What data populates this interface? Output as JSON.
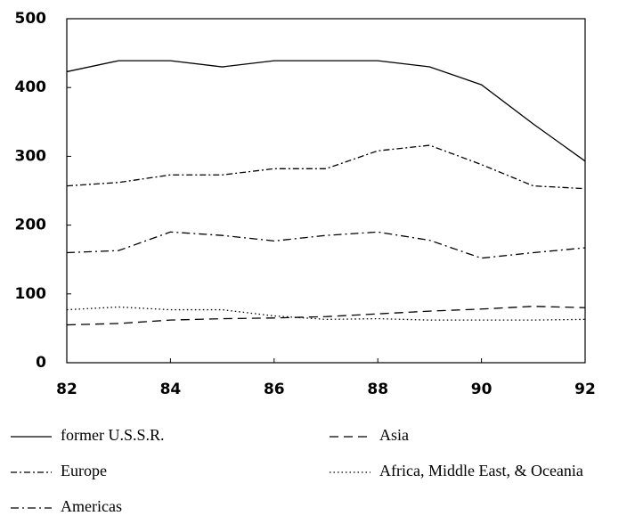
{
  "chart_data": {
    "type": "line",
    "x": [
      82,
      83,
      84,
      85,
      86,
      87,
      88,
      89,
      90,
      91,
      92
    ],
    "xlim": [
      82,
      92
    ],
    "xticks": [
      82,
      84,
      86,
      88,
      90,
      92
    ],
    "ylim": [
      0,
      500
    ],
    "yticks": [
      0,
      100,
      200,
      300,
      400,
      500
    ],
    "grid": false,
    "series": [
      {
        "name": "former U.S.S.R.",
        "color": "#000000",
        "style": "solid",
        "values": [
          423,
          439,
          439,
          430,
          439,
          439,
          439,
          430,
          404,
          347,
          293
        ]
      },
      {
        "name": "Europe",
        "color": "#000000",
        "style": "dashdot",
        "values": [
          257,
          262,
          273,
          273,
          282,
          282,
          308,
          316,
          288,
          257,
          253
        ]
      },
      {
        "name": "Americas",
        "color": "#000000",
        "style": "longdashdot",
        "values": [
          160,
          163,
          190,
          185,
          177,
          185,
          190,
          178,
          152,
          160,
          167
        ]
      },
      {
        "name": "Asia",
        "color": "#000000",
        "style": "dashed",
        "values": [
          55,
          57,
          62,
          64,
          65,
          67,
          71,
          75,
          78,
          82,
          80
        ]
      },
      {
        "name": "Africa, Middle East, & Oceania",
        "color": "#000000",
        "style": "dotted",
        "values": [
          77,
          81,
          77,
          77,
          68,
          63,
          64,
          62,
          62,
          62,
          63
        ]
      }
    ]
  }
}
